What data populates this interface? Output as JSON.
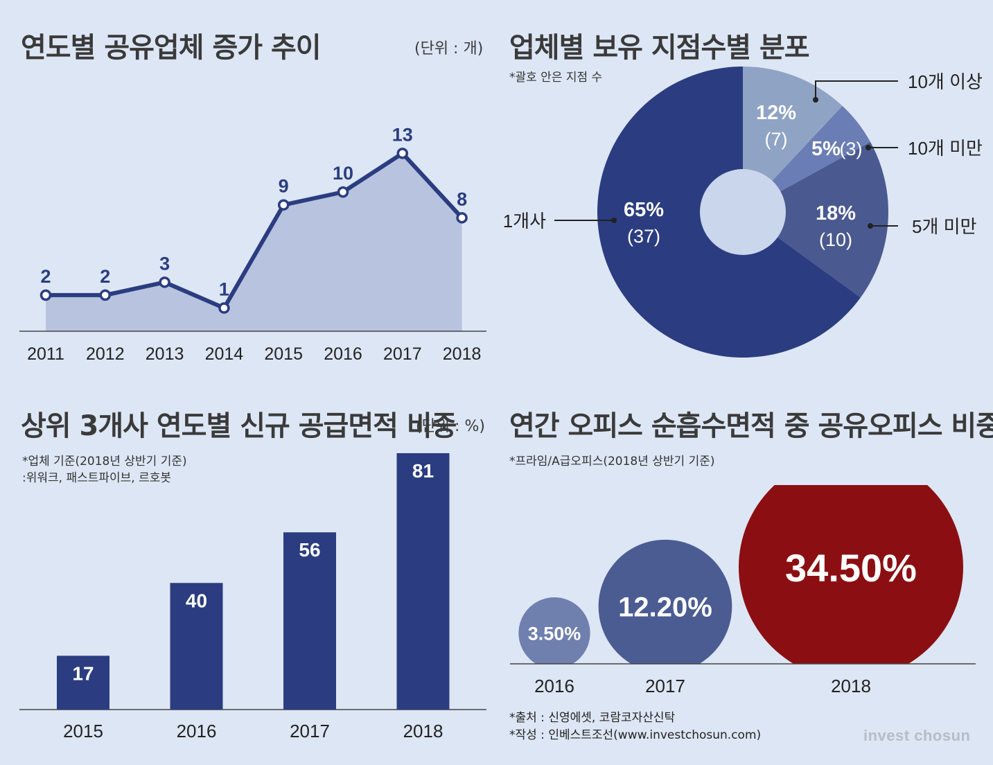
{
  "colors": {
    "navy": "#2b3d80",
    "area": "#b8c4df",
    "pie_light": "#8fa3c4",
    "pie_mid": "#6a7db4",
    "pie_dark": "#4a5a90",
    "hole": "#c9d6ec",
    "bubble_2016": "#6f7fae",
    "bubble_2017": "#4b5c92",
    "bubble_2018": "#8b0f12"
  },
  "panel1": {
    "title": "연도별 공유업체 증가 추이",
    "unit": "(단위 : 개)"
  },
  "panel2": {
    "title": "업체별 보유 지점수별 분포",
    "note": "*괄호 안은 지점 수"
  },
  "panel3": {
    "title": "상위 3개사 연도별 신규 공급면적 비중",
    "unit": "(단위 : %)",
    "note1": "*업체 기준(2018년 상반기 기준)",
    "note2": ":위워크, 패스트파이브, 르호봇"
  },
  "panel4": {
    "title": "연간 오피스 순흡수면적 중 공유오피스 비중",
    "note": "*프라임/A급오피스(2018년 상반기 기준)"
  },
  "footer": {
    "source": "*출처 : 신영에셋, 코람코자산신탁",
    "author": "*작성 : 인베스트조선(www.investchosun.com)",
    "brand_left": "invest",
    "brand_right": "chosun"
  },
  "chart_data": [
    {
      "type": "area",
      "categories": [
        "2011",
        "2012",
        "2013",
        "2014",
        "2015",
        "2016",
        "2017",
        "2018"
      ],
      "values": [
        2,
        2,
        3,
        1,
        9,
        10,
        13,
        8
      ],
      "labels": [
        "2",
        "2",
        "3",
        "1",
        "9",
        "10",
        "13",
        "8"
      ],
      "ylim": [
        0,
        14
      ]
    },
    {
      "type": "pie",
      "slices": [
        {
          "name": "10개 이상",
          "percent": 12,
          "percent_label": "12%",
          "count_label": "(7)"
        },
        {
          "name": "10개 미만",
          "percent": 5,
          "percent_label": "5%",
          "count_label": "(3)"
        },
        {
          "name": "5개 미만",
          "percent": 18,
          "percent_label": "18%",
          "count_label": "(10)"
        },
        {
          "name": "1개사",
          "percent": 65,
          "percent_label": "65%",
          "count_label": "(37)"
        }
      ]
    },
    {
      "type": "bar",
      "categories": [
        "2015",
        "2016",
        "2017",
        "2018"
      ],
      "values": [
        17,
        40,
        56,
        81
      ],
      "labels": [
        "17",
        "40",
        "56",
        "81"
      ],
      "ylim": [
        0,
        81
      ]
    },
    {
      "type": "bubble",
      "categories": [
        "2016",
        "2017",
        "2018"
      ],
      "values": [
        3.5,
        12.2,
        34.5
      ],
      "labels": [
        "3.50%",
        "12.20%",
        "34.50%"
      ]
    }
  ]
}
